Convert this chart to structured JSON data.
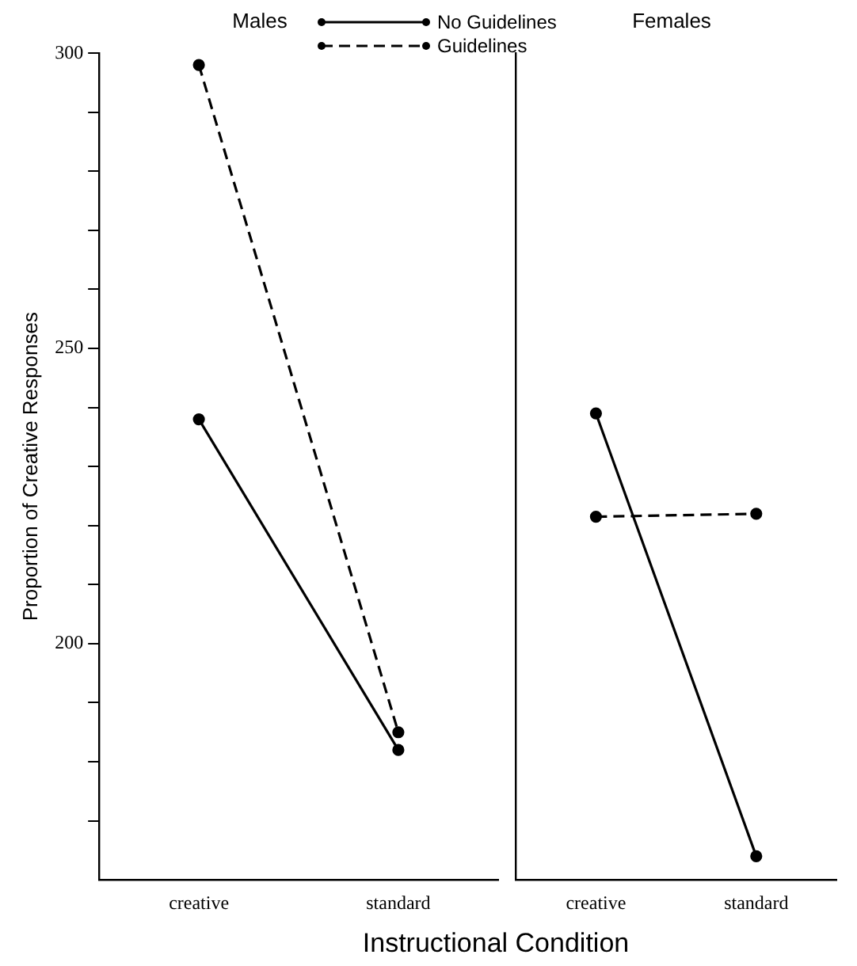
{
  "chart_data": [
    {
      "type": "line",
      "title": "Males",
      "xlabel": "Instructional Condition",
      "ylabel": "Proportion of Creative Responses",
      "categories": [
        "creative",
        "standard"
      ],
      "series": [
        {
          "name": "No Guidelines",
          "color": "#000000",
          "line_style": "solid",
          "values": [
            238,
            182
          ]
        },
        {
          "name": "Guidelines",
          "color": "#000000",
          "line_style": "dashed",
          "values": [
            298,
            185
          ]
        }
      ],
      "ylim": [
        160,
        300
      ],
      "yticks": [
        {
          "value": 170,
          "label": null
        },
        {
          "value": 180,
          "label": null
        },
        {
          "value": 190,
          "label": null
        },
        200,
        {
          "value": 210,
          "label": null
        },
        {
          "value": 220,
          "label": null
        },
        {
          "value": 230,
          "label": null
        },
        {
          "value": 240,
          "label": null
        },
        250,
        {
          "value": 260,
          "label": null
        },
        {
          "value": 270,
          "label": null
        },
        {
          "value": 280,
          "label": null
        },
        {
          "value": 290,
          "label": null
        },
        300
      ],
      "marker": "circle",
      "grid": false,
      "legend": "top right"
    },
    {
      "type": "line",
      "title": "Females",
      "categories": [
        "creative",
        "standard"
      ],
      "series": [
        {
          "color": "#000000",
          "line_style": "solid",
          "values": [
            239,
            164
          ]
        },
        {
          "color": "#000000",
          "line_style": "dashed",
          "values": [
            221.5,
            222
          ]
        }
      ],
      "ylim": [
        160,
        300
      ],
      "marker": "circle",
      "grid": false,
      "tick_labels": "x"
    }
  ]
}
